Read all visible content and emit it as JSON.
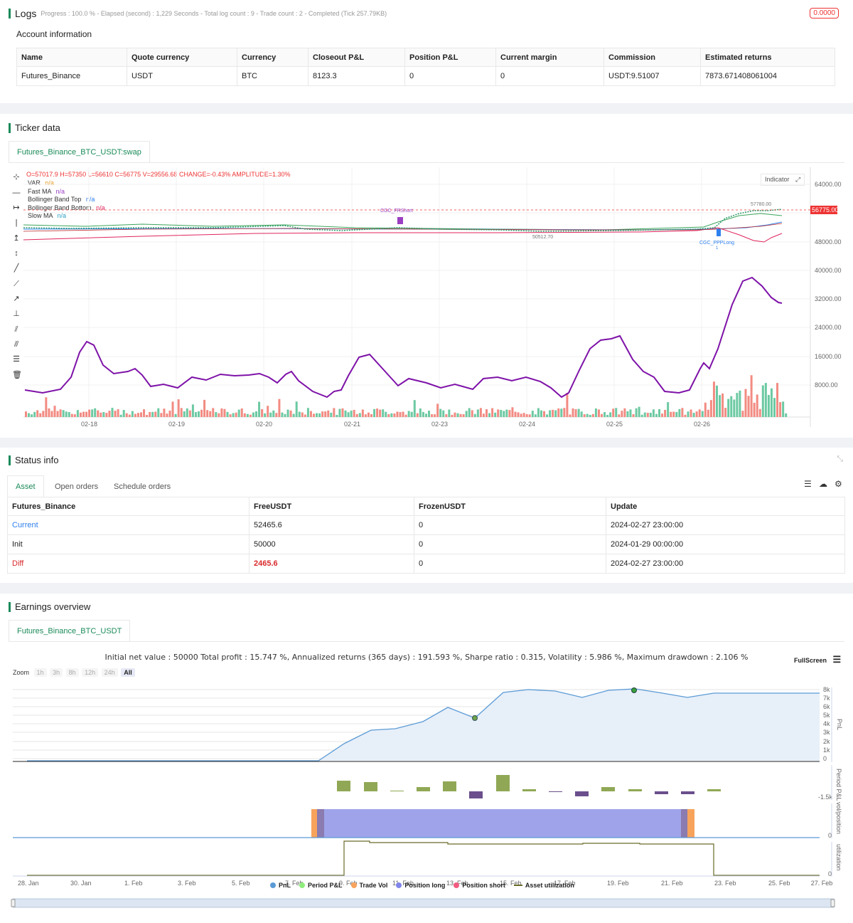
{
  "logs": {
    "title": "Logs",
    "status": "Progress : 100.0 % - Elapsed (second) : 1,229 Seconds - Total log count : 9 - Trade count : 2 - Completed (Tick 257.79KB)",
    "badge": "0.0000"
  },
  "account": {
    "title": "Account information",
    "headers": [
      "Name",
      "Quote currency",
      "Currency",
      "Closeout P&L",
      "Position P&L",
      "Current margin",
      "Commission",
      "Estimated returns"
    ],
    "row": [
      "Futures_Binance",
      "USDT",
      "BTC",
      "8123.3",
      "0",
      "0",
      "USDT:9.51007",
      "7873.671408061004"
    ]
  },
  "ticker": {
    "title": "Ticker data",
    "tab": "Futures_Binance_BTC_USDT:swap",
    "ohlc_label": "O=57017.9 H=57350 L=56610 C=56775 V=29556.68 CHANGE=-0.43% AMPLITUDE=1.30%",
    "indicators": [
      {
        "name": "VAR",
        "value": "n/a",
        "color": "#e69a1c"
      },
      {
        "name": "Fast MA",
        "value": "n/a",
        "color": "#9a3fc2"
      },
      {
        "name": "Bollinger Band Top",
        "value": "n/a",
        "color": "#2f80ed"
      },
      {
        "name": "Bollinger Band Bottom",
        "value": "n/a",
        "color": "#e0245e"
      },
      {
        "name": "Slow MA",
        "value": "n/a",
        "color": "#2aa1c4"
      }
    ],
    "indicator_btn": "Indicator",
    "price_tag": "56775.00",
    "price_ticks": [
      "64000.00",
      "56000.00",
      "48000.00",
      "40000.00",
      "32000.00",
      "24000.00",
      "16000.00",
      "8000.00"
    ],
    "date_ticks": [
      "02-18",
      "02-19",
      "02-20",
      "02-21",
      "02-23",
      "02-24",
      "02-25",
      "02-26"
    ],
    "annotations": {
      "high": "57780.00",
      "low": "50512.70",
      "short": "CGC_FRShort",
      "long": "CGC_PPPLong",
      "long_count": "1"
    }
  },
  "status": {
    "title": "Status info",
    "tabs": [
      "Asset",
      "Open orders",
      "Schedule orders"
    ],
    "headers": [
      "Futures_Binance",
      "FreeUSDT",
      "FrozenUSDT",
      "Update"
    ],
    "rows": [
      {
        "label": "Current",
        "free": "52465.6",
        "frozen": "0",
        "update": "2024-02-27 23:00:00",
        "color": "#2f80ed"
      },
      {
        "label": "Init",
        "free": "50000",
        "frozen": "0",
        "update": "2024-01-29 00:00:00",
        "color": "#333"
      },
      {
        "label": "Diff",
        "free": "2465.6",
        "frozen": "0",
        "update": "2024-02-27 23:00:00",
        "color": "#d9292b"
      }
    ]
  },
  "earnings": {
    "title": "Earnings overview",
    "tab": "Futures_Binance_BTC_USDT",
    "summary": "Initial net value : 50000 Total profit : 15.747 %, Annualized returns (365 days) : 191.593 %, Sharpe ratio : 0.315, Volatility : 5.986 %, Maximum drawdown : 2.106 %",
    "fullscreen": "FullScreen",
    "zoom_label": "Zoom",
    "zoom_options": [
      "1h",
      "3h",
      "8h",
      "12h",
      "24h",
      "All"
    ],
    "pnl_ticks": [
      "8k",
      "7k",
      "6k",
      "5k",
      "4k",
      "3k",
      "2k",
      "1k",
      "0"
    ],
    "ppl_tick": "-1.5k",
    "pos_tick": "0",
    "util_tick": "0",
    "axis_titles": [
      "PnL",
      "Period P&L",
      "vol/position",
      "utilization"
    ],
    "date_ticks": [
      "28. Jan",
      "30. Jan",
      "1. Feb",
      "3. Feb",
      "5. Feb",
      "7. Feb",
      "9. Feb",
      "11. Feb",
      "13. Feb",
      "15. Feb",
      "17. Feb",
      "19. Feb",
      "21. Feb",
      "23. Feb",
      "25. Feb",
      "27. Feb"
    ],
    "legend": [
      {
        "name": "PnL",
        "color": "#5b9bd5"
      },
      {
        "name": "Period P&L",
        "color": "#90ed7d"
      },
      {
        "name": "Trade Vol",
        "color": "#f7a35c"
      },
      {
        "name": "Position long",
        "color": "#8085e9"
      },
      {
        "name": "Position short",
        "color": "#f15c80"
      },
      {
        "name": "Asset utilization",
        "color": "#6b6b2a"
      }
    ]
  }
}
